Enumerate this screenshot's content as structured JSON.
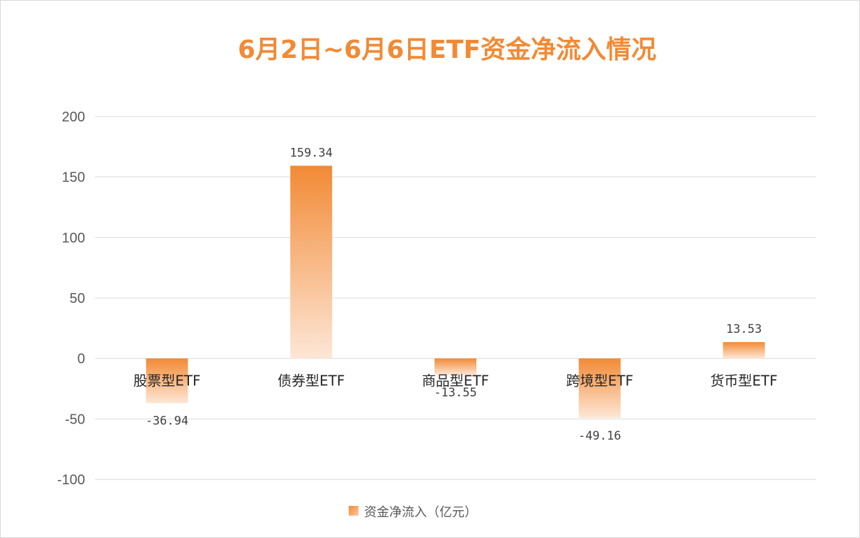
{
  "chart_data": {
    "type": "bar",
    "title": "6月2日~6月6日ETF资金净流入情况",
    "categories": [
      "股票型ETF",
      "债券型ETF",
      "商品型ETF",
      "跨境型ETF",
      "货币型ETF"
    ],
    "series": [
      {
        "name": "资金净流入（亿元）",
        "values": [
          -36.94,
          159.34,
          -13.55,
          -49.16,
          13.53
        ],
        "data_labels": [
          "-36.94",
          "159.34",
          "-13.55",
          "-49.16",
          "13.53"
        ]
      }
    ],
    "ylim": [
      -100,
      200
    ],
    "yticks": [
      -100,
      -50,
      0,
      50,
      100,
      150,
      200
    ],
    "grid": true,
    "legend_position": "bottom",
    "colors": {
      "bar_top": "#f28a35",
      "bar_bottom": "#fde7d6",
      "title": "#f28a35",
      "grid": "#d9d9d9"
    }
  }
}
